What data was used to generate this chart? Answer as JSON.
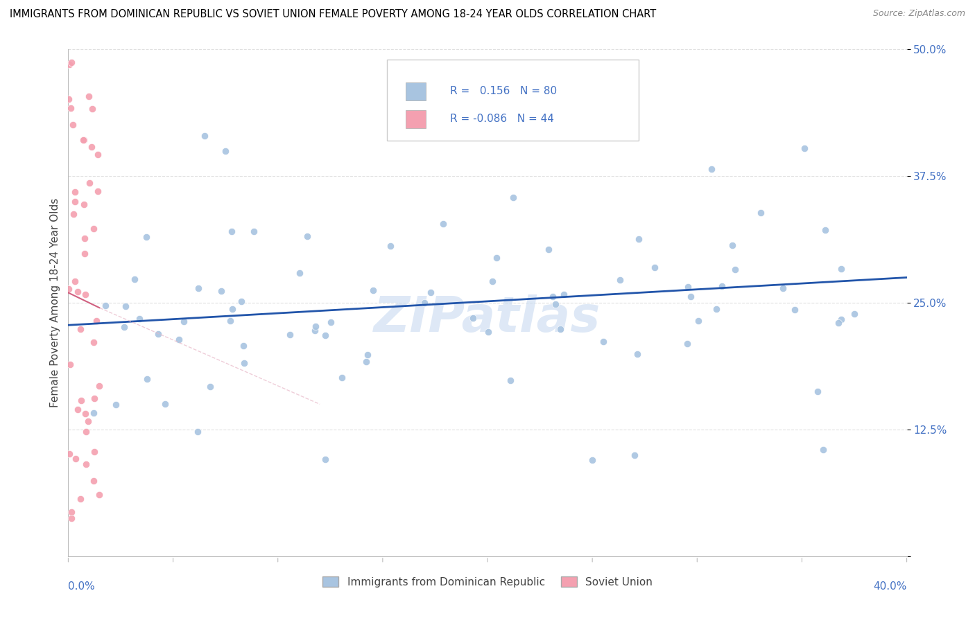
{
  "title": "IMMIGRANTS FROM DOMINICAN REPUBLIC VS SOVIET UNION FEMALE POVERTY AMONG 18-24 YEAR OLDS CORRELATION CHART",
  "source": "Source: ZipAtlas.com",
  "ylabel": "Female Poverty Among 18-24 Year Olds",
  "xlim": [
    0.0,
    40.0
  ],
  "ylim": [
    0.0,
    50.0
  ],
  "yticks": [
    0.0,
    12.5,
    25.0,
    37.5,
    50.0
  ],
  "ytick_labels": [
    "",
    "12.5%",
    "25.0%",
    "37.5%",
    "50.0%"
  ],
  "R_blue": 0.156,
  "N_blue": 80,
  "R_pink": -0.086,
  "N_pink": 44,
  "blue_color": "#a8c4e0",
  "pink_color": "#f4a0b0",
  "blue_line_color": "#2255aa",
  "pink_line_color": "#d06080",
  "pink_dash_color": "#e8b8c8",
  "watermark_color": "#c8daf0",
  "legend_label_blue": "Immigrants from Dominican Republic",
  "legend_label_pink": "Soviet Union",
  "blue_trend_x0": 0.0,
  "blue_trend_y0": 22.8,
  "blue_trend_x1": 40.0,
  "blue_trend_y1": 27.5,
  "pink_trend_x0": 0.0,
  "pink_trend_y0": 26.0,
  "pink_trend_x1": 12.0,
  "pink_trend_y1": 15.0,
  "grid_color": "#dddddd",
  "title_fontsize": 10.5,
  "source_fontsize": 9,
  "tick_fontsize": 11,
  "ylabel_fontsize": 11
}
